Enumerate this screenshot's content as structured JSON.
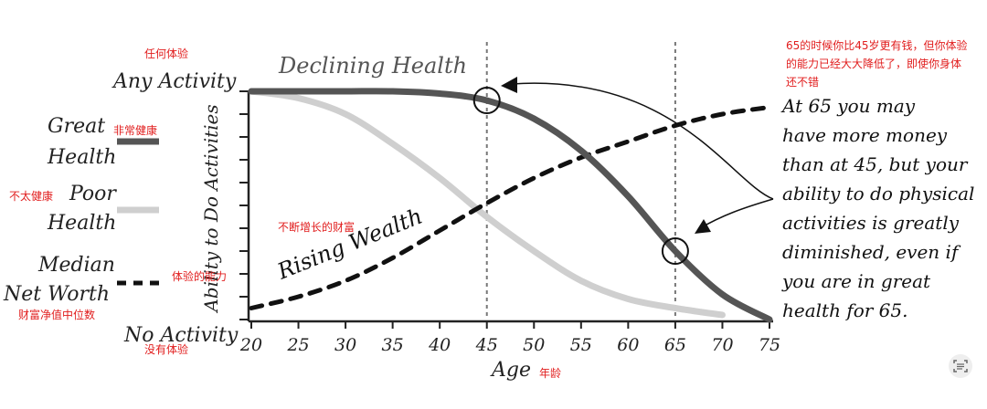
{
  "chart_data": {
    "type": "line",
    "title": "",
    "xlabel": "Age",
    "ylabel": "Ability to Do Activities",
    "xlim": [
      20,
      75
    ],
    "x_ticks": [
      20,
      25,
      30,
      35,
      40,
      45,
      50,
      55,
      60,
      65,
      70,
      75
    ],
    "y_top_label": "Any Activity",
    "y_bottom_label": "No Activity",
    "series": [
      {
        "name": "Great Health",
        "color": "#555555",
        "x": [
          20,
          25,
          30,
          35,
          40,
          45,
          50,
          55,
          60,
          65,
          70,
          75
        ],
        "values": [
          1.0,
          1.0,
          1.0,
          1.0,
          0.99,
          0.96,
          0.88,
          0.74,
          0.54,
          0.3,
          0.11,
          0.0
        ]
      },
      {
        "name": "Poor Health",
        "color": "#cfcfcf",
        "x": [
          20,
          25,
          30,
          35,
          40,
          45,
          50,
          55,
          60,
          65,
          70
        ],
        "values": [
          1.0,
          0.97,
          0.9,
          0.77,
          0.62,
          0.45,
          0.3,
          0.17,
          0.09,
          0.05,
          0.02
        ]
      },
      {
        "name": "Median Net Worth",
        "color": "#111111",
        "dashed": true,
        "x": [
          20,
          25,
          30,
          35,
          40,
          45,
          50,
          55,
          60,
          65,
          70,
          75
        ],
        "values": [
          0.05,
          0.1,
          0.17,
          0.27,
          0.39,
          0.51,
          0.62,
          0.71,
          0.78,
          0.85,
          0.9,
          0.93
        ]
      }
    ],
    "reference_lines_x": [
      45,
      65
    ],
    "annotations": {
      "declining": "Declining Health",
      "rising": "Rising Wealth",
      "note_lines": [
        "At 65 you may",
        "have more money",
        "than at 45, but your",
        "ability to do physical",
        "activities is greatly",
        "diminished, even if",
        "you are in great",
        "health for 65."
      ]
    },
    "grid": false
  },
  "legend": {
    "great_line1": "Great",
    "great_line2": "Health",
    "poor_line1": "Poor",
    "poor_line2": "Health",
    "net_line1": "Median",
    "net_line2": "Net Worth"
  },
  "cn": {
    "any_activity": "任何体验",
    "great_health": "非常健康",
    "poor_health": "不太健康",
    "median_net": "财富净值中位数",
    "no_activity": "没有体验",
    "rising_wealth": "不断增长的财富",
    "ability": "体验的能力",
    "age": "年龄",
    "top_note": "65的时候你比45岁更有钱，但你体验的能力已经大大降低了，即使你身体还不错"
  },
  "colors": {
    "great": "#555555",
    "poor": "#cfcfcf",
    "networth": "#111111",
    "cn_text": "#e11d1d"
  }
}
